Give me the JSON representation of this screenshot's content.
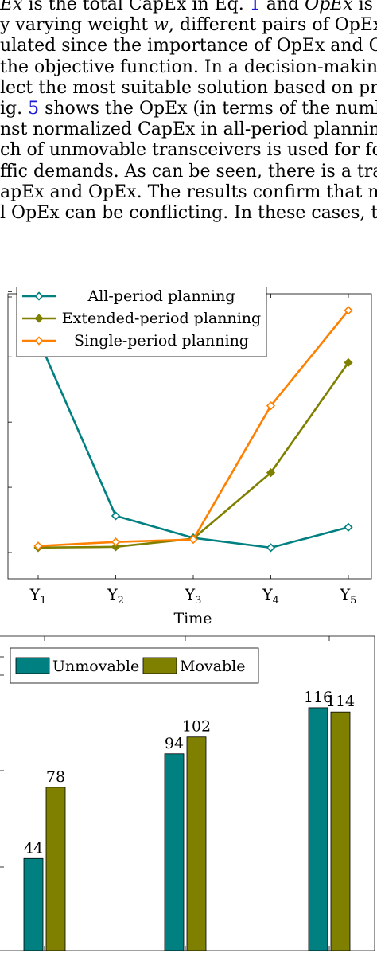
{
  "paragraph": {
    "lines": [
      {
        "pre": "",
        "it1": "Ex",
        "mid1": " is the total CapEx in Eq. ",
        "ref": "1",
        "mid2": " and ",
        "it2": "OpEx",
        "post": " is the nu"
      },
      {
        "pre": "y varying weight ",
        "it1": "w",
        "mid1": ", different pairs of OpEx-Ca",
        "ref": "",
        "mid2": "",
        "it2": "",
        "post": ""
      },
      {
        "pre": "ulated since the importance of OpEx and CapI",
        "it1": "",
        "mid1": "",
        "ref": "",
        "mid2": "",
        "it2": "",
        "post": ""
      },
      {
        "pre": "the objective function. In a decision-making pro",
        "it1": "",
        "mid1": "",
        "ref": "",
        "mid2": "",
        "it2": "",
        "post": ""
      },
      {
        "pre": "lect the most suitable solution based on predef",
        "it1": "",
        "mid1": "",
        "ref": "",
        "mid2": "",
        "it2": "",
        "post": ""
      },
      {
        "pre": "ig. ",
        "it1": "",
        "mid1": "",
        "ref": "5",
        "mid2": " shows the OpEx (in terms of the numb",
        "it2": "",
        "post": ""
      },
      {
        "pre": "nst normalized CapEx in all-period planning w",
        "it1": "",
        "mid1": "",
        "ref": "",
        "mid2": "",
        "it2": "",
        "post": ""
      },
      {
        "pre": "ch of unmovable transceivers is used for four diffe",
        "it1": "",
        "mid1": "",
        "ref": "",
        "mid2": "",
        "it2": "",
        "post": ""
      },
      {
        "pre": "ffic demands.  As can be seen, there is a trad",
        "it1": "",
        "mid1": "",
        "ref": "",
        "mid2": "",
        "it2": "",
        "post": ""
      },
      {
        "pre": "apEx and OpEx. The results confirm that minimi",
        "it1": "",
        "mid1": "",
        "ref": "",
        "mid2": "",
        "it2": "",
        "post": ""
      },
      {
        "pre": "l OpEx can be conflicting.  In these cases, the C",
        "it1": "",
        "mid1": "",
        "ref": "",
        "mid2": "",
        "it2": "",
        "post": ""
      }
    ]
  },
  "chart_data": [
    {
      "type": "line",
      "title": "",
      "xlabel": "Time",
      "ylabel": "",
      "categories": [
        "Y1",
        "Y2",
        "Y3",
        "Y4",
        "Y5"
      ],
      "ylim": [
        0,
        4.2
      ],
      "grid": false,
      "legend_position": "top-left",
      "series": [
        {
          "name": "All-period planning",
          "color": "#008080",
          "marker": "diamond-open",
          "values": [
            2.62,
            0.45,
            0.18,
            0.06,
            0.31
          ]
        },
        {
          "name": "Extended-period planning",
          "color": "#808000",
          "marker": "diamond-filled",
          "values": [
            0.06,
            0.07,
            0.17,
            0.98,
            2.33
          ]
        },
        {
          "name": "Single-period planning",
          "color": "#ff8000",
          "marker": "diamond-open",
          "values": [
            0.08,
            0.13,
            0.16,
            1.8,
            2.97
          ]
        }
      ]
    },
    {
      "type": "bar",
      "title": "",
      "xlabel": "",
      "ylabel": "",
      "categories": [
        "",
        "",
        ""
      ],
      "ylim": [
        0,
        140
      ],
      "grid": false,
      "legend_position": "top-left",
      "series": [
        {
          "name": "Unmovable",
          "color": "#008080",
          "values": [
            44,
            94,
            116
          ]
        },
        {
          "name": "Movable",
          "color": "#808000",
          "values": [
            78,
            102,
            114
          ]
        }
      ]
    }
  ]
}
